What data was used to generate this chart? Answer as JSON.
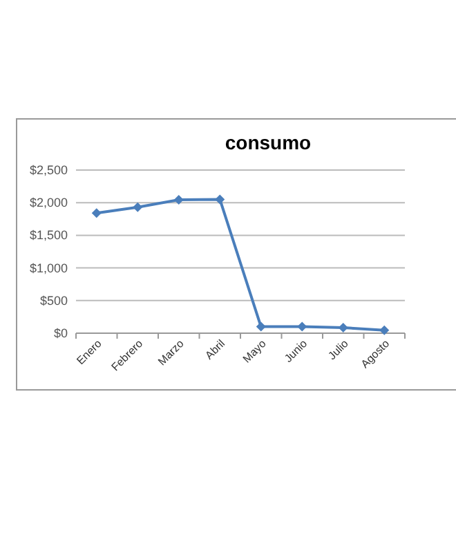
{
  "chart_data": {
    "type": "line",
    "title": "consumo",
    "categories": [
      "Enero",
      "Febrero",
      "Marzo",
      "Abril",
      "Mayo",
      "Junio",
      "Julio",
      "Agosto"
    ],
    "series": [
      {
        "color": "#4a7ebb",
        "values": [
          1840,
          1930,
          2045,
          2050,
          100,
          100,
          85,
          45
        ]
      }
    ],
    "ylim": [
      0,
      2500
    ],
    "yticks": [
      {
        "value": 0,
        "label": "$0"
      },
      {
        "value": 500,
        "label": "$500"
      },
      {
        "value": 1000,
        "label": "$1,000"
      },
      {
        "value": 1500,
        "label": "$1,500"
      },
      {
        "value": 2000,
        "label": "$2,000"
      },
      {
        "value": 2500,
        "label": "$2,500"
      }
    ],
    "grid": "y",
    "marker": "diamond",
    "line_style": "solid"
  }
}
